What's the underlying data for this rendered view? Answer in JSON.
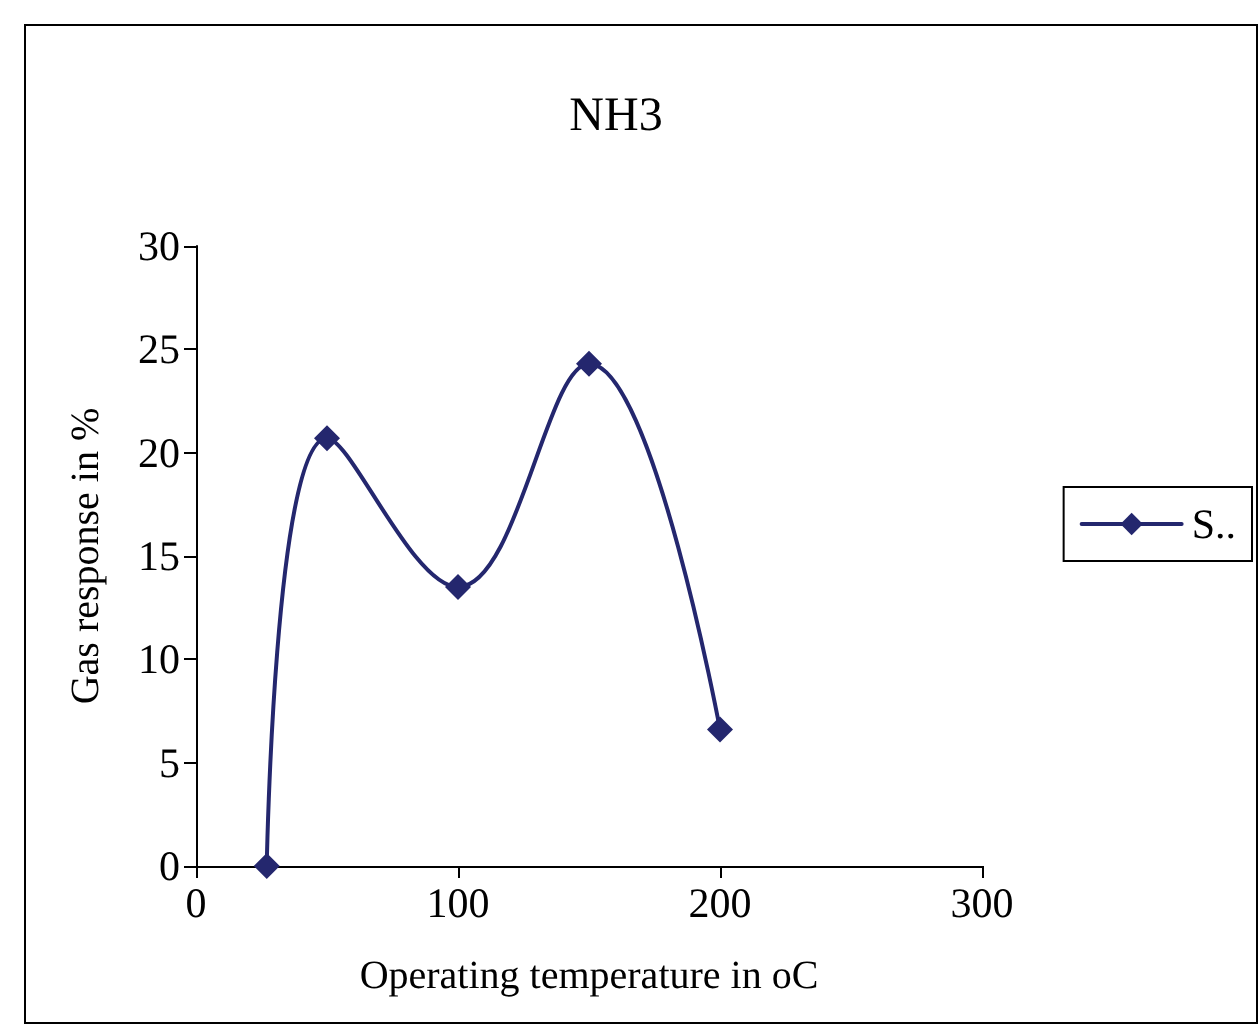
{
  "chart_data": {
    "type": "line",
    "title": "NH3",
    "xlabel": "Operating temperature in oC",
    "ylabel": "Gas response in %",
    "x": [
      27,
      50,
      100,
      150,
      200
    ],
    "series": [
      {
        "name": "S..",
        "color": "#24276e",
        "values": [
          0,
          20.7,
          13.5,
          24.3,
          6.6
        ]
      }
    ],
    "xlim": [
      0,
      300
    ],
    "xticks": [
      0,
      100,
      200,
      300
    ],
    "ylim": [
      0,
      30
    ],
    "yticks": [
      0,
      5,
      10,
      15,
      20,
      25,
      30
    ],
    "grid": false,
    "legend": "right",
    "marker": "diamond",
    "line_style": "solid"
  }
}
